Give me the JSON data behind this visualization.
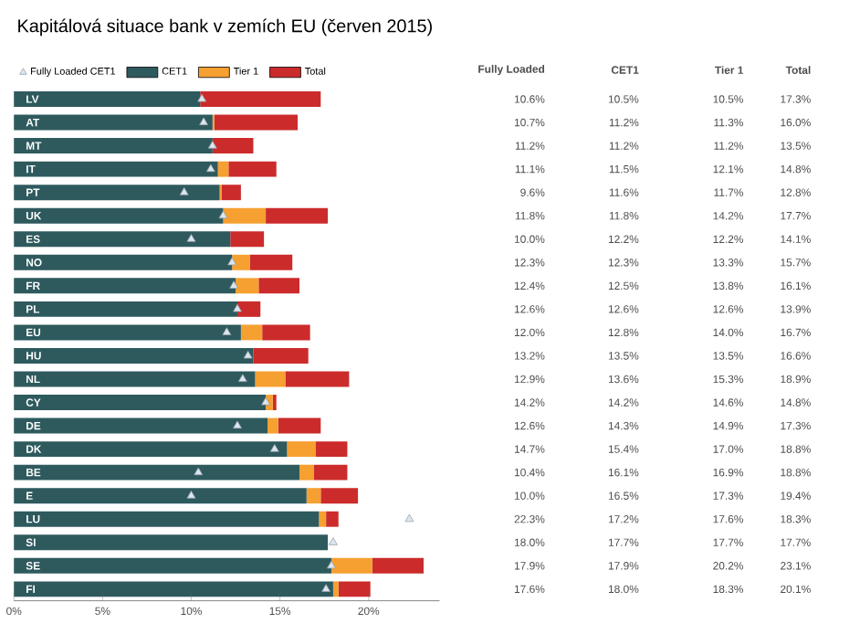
{
  "chart_data": {
    "type": "bar",
    "orientation": "horizontal",
    "stacked": true,
    "title": "Kapitálová situace bank v zemích EU (červen 2015)",
    "categories": [
      "LV",
      "AT",
      "MT",
      "IT",
      "PT",
      "UK",
      "ES",
      "NO",
      "FR",
      "PL",
      "EU",
      "HU",
      "NL",
      "CY",
      "DE",
      "DK",
      "BE",
      "E",
      "LU",
      "SI",
      "SE",
      "FI"
    ],
    "series": [
      {
        "name": "Fully Loaded CET1",
        "type": "scatter",
        "marker": "triangle",
        "color": "#dce6f0",
        "values": [
          10.6,
          10.7,
          11.2,
          11.1,
          9.6,
          11.8,
          10.0,
          12.3,
          12.4,
          12.6,
          12.0,
          13.2,
          12.9,
          14.2,
          12.6,
          14.7,
          10.4,
          10.0,
          22.3,
          18.0,
          17.9,
          17.6
        ],
        "value_labels": [
          "10.6%",
          "10.7%",
          "11.2%",
          "11.1%",
          "9.6%",
          "11.8%",
          "10.0%",
          "12.3%",
          "12.4%",
          "12.6%",
          "12.0%",
          "13.2%",
          "12.9%",
          "14.2%",
          "12.6%",
          "14.7%",
          "10.4%",
          "10.0%",
          "22.3%",
          "18.0%",
          "17.9%",
          "17.6%"
        ]
      },
      {
        "name": "CET1",
        "color": "#2e5a5e",
        "values": [
          10.5,
          11.2,
          11.2,
          11.5,
          11.6,
          11.8,
          12.2,
          12.3,
          12.5,
          12.6,
          12.8,
          13.5,
          13.6,
          14.2,
          14.3,
          15.4,
          16.1,
          16.5,
          17.2,
          17.7,
          17.9,
          18.0
        ],
        "value_labels": [
          "10.5%",
          "11.2%",
          "11.2%",
          "11.5%",
          "11.6%",
          "11.8%",
          "12.2%",
          "12.3%",
          "12.5%",
          "12.6%",
          "12.8%",
          "13.5%",
          "13.6%",
          "14.2%",
          "14.3%",
          "15.4%",
          "16.1%",
          "16.5%",
          "17.2%",
          "17.7%",
          "17.9%",
          "18.0%"
        ]
      },
      {
        "name": "Tier 1",
        "color": "#f5a030",
        "values": [
          0.0,
          0.1,
          0.0,
          0.6,
          0.1,
          2.4,
          0.0,
          1.0,
          1.3,
          0.0,
          1.2,
          0.0,
          1.7,
          0.4,
          0.6,
          1.6,
          0.8,
          0.8,
          0.4,
          0.0,
          2.3,
          0.3
        ]
      },
      {
        "name": "Total",
        "color": "#cc2b2b",
        "values": [
          6.8,
          4.7,
          2.3,
          2.7,
          1.1,
          3.5,
          1.9,
          2.4,
          2.3,
          1.3,
          2.7,
          3.1,
          3.6,
          0.2,
          2.4,
          1.8,
          1.9,
          2.1,
          0.7,
          0.0,
          2.9,
          1.8
        ]
      }
    ],
    "annotations": [
      "Fully Loaded",
      "CET1",
      "Tier 1",
      "Total",
      "10.5%",
      "11.3%",
      "11.2%",
      "12.1%",
      "11.7%",
      "14.2%",
      "12.2%",
      "13.3%",
      "13.8%",
      "12.6%",
      "14.0%",
      "13.5%",
      "15.3%",
      "14.6%",
      "14.9%",
      "17.0%",
      "16.9%",
      "17.3%",
      "17.6%",
      "17.7%",
      "20.2%",
      "18.3%",
      "17.3%",
      "16.0%",
      "13.5%",
      "14.8%",
      "12.8%",
      "17.7%",
      "14.1%",
      "15.7%",
      "16.1%",
      "13.9%",
      "16.7%",
      "16.6%",
      "18.9%",
      "14.8%",
      "17.3%",
      "18.8%",
      "18.8%",
      "19.4%",
      "18.3%",
      "17.7%",
      "23.1%",
      "20.1%"
    ],
    "xlim": [
      0,
      24
    ],
    "xticks": [
      {
        "value": 0,
        "label": "0%"
      },
      {
        "value": 5,
        "label": "5%"
      },
      {
        "value": 10,
        "label": "10%"
      },
      {
        "value": 15,
        "label": "15%"
      },
      {
        "value": 20,
        "label": "20%"
      }
    ],
    "legend": "top left",
    "grid": false
  }
}
